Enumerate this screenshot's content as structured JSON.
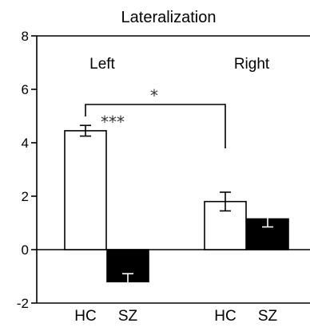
{
  "chart_data": {
    "type": "bar",
    "title": "Lateralization",
    "xlabel": "",
    "ylabel": "",
    "ylim": [
      -2,
      8
    ],
    "yticks": [
      -2,
      0,
      2,
      4,
      6,
      8
    ],
    "ytick_labels": [
      "-2",
      "0",
      "2",
      "4",
      "6",
      "8"
    ],
    "groups": [
      "Left",
      "Right"
    ],
    "categories": [
      "HC",
      "SZ",
      "HC",
      "SZ"
    ],
    "bars": [
      {
        "group": "Left",
        "category": "HC",
        "value": 4.45,
        "error": 0.2,
        "fill": "#ffffff"
      },
      {
        "group": "Left",
        "category": "SZ",
        "value": -1.2,
        "error": 0.3,
        "fill": "#000000"
      },
      {
        "group": "Right",
        "category": "HC",
        "value": 1.8,
        "error": 0.35,
        "fill": "#ffffff"
      },
      {
        "group": "Right",
        "category": "SZ",
        "value": 1.15,
        "error": 0.3,
        "fill": "#000000"
      }
    ],
    "annotations": [
      {
        "text": "***",
        "between": "Left HC vs Left SZ"
      },
      {
        "text": "*",
        "between": "Left HC vs Right HC"
      }
    ],
    "grid": false,
    "legend": "none",
    "colors": {
      "hc": "#ffffff",
      "sz": "#000000",
      "axis": "#000000"
    }
  }
}
